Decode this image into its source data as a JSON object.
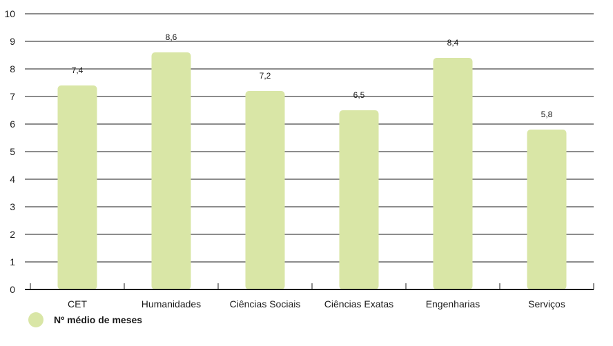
{
  "chart_data": {
    "type": "bar",
    "categories": [
      "CET",
      "Humanidades",
      "Ciências Sociais",
      "Ciências Exatas",
      "Engenharias",
      "Serviços"
    ],
    "series": [
      {
        "name": "Nº médio de meses",
        "values": [
          7.4,
          8.6,
          7.2,
          6.5,
          8.4,
          5.8
        ],
        "value_labels": [
          "7,4",
          "8,6",
          "7,2",
          "6,5",
          "8,4",
          "5,8"
        ]
      }
    ],
    "yticks": [
      "0",
      "1",
      "2",
      "3",
      "4",
      "5",
      "6",
      "7",
      "8",
      "9",
      "10"
    ],
    "ylim": [
      0,
      10
    ],
    "grid": true,
    "legend_position": "bottom-left",
    "bar_color": "#d9e6a6",
    "axis_color": "#1a1a1a"
  }
}
